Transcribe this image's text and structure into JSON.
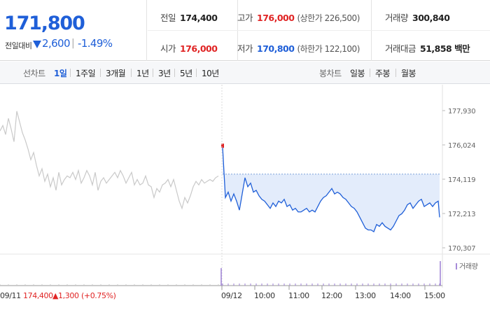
{
  "price": {
    "current": "171,800",
    "change_label": "전일대비",
    "change_amount": "2,600",
    "change_rate": "-1.49%"
  },
  "info": {
    "prev_close": {
      "label": "전일",
      "value": "174,400"
    },
    "high": {
      "label": "고가",
      "value": "176,000",
      "sub": "(상한가 226,500)"
    },
    "volume": {
      "label": "거래량",
      "value": "300,840"
    },
    "open": {
      "label": "시가",
      "value": "176,000"
    },
    "low": {
      "label": "저가",
      "value": "170,800",
      "sub": "(하한가 122,100)"
    },
    "amount": {
      "label": "거래대금",
      "value": "51,858 백만"
    }
  },
  "tabs": {
    "line_chart_label": "선차트",
    "periods": [
      "1일",
      "1주일",
      "3개월",
      "1년",
      "3년",
      "5년",
      "10년"
    ],
    "active_period": "1일",
    "candle_chart_label": "봉차트",
    "candle_periods": [
      "일봉",
      "주봉",
      "월봉"
    ]
  },
  "chart_data": {
    "type": "line",
    "y_ticks": [
      "177,930",
      "176,024",
      "174,119",
      "172,213",
      "170,307"
    ],
    "ylim": [
      170307,
      177930
    ],
    "prev_close_level": 174400,
    "volume_label": "거래량",
    "prev_day_label": "09/11",
    "prev_day_close": "174,400",
    "prev_day_change": "▲1,300",
    "prev_day_rate": "(+0.75%)",
    "x_ticks": [
      "09/12",
      "10:00",
      "11:00",
      "12:00",
      "13:00",
      "14:00",
      "15:00"
    ],
    "series": [
      {
        "day": "09/11",
        "x": [
          0,
          4,
          8,
          12,
          16,
          20,
          24,
          28,
          32,
          36,
          40,
          44,
          48,
          52,
          56,
          60,
          64,
          68,
          72,
          76,
          80,
          84,
          88,
          92,
          96,
          100,
          104,
          108,
          112,
          116,
          120,
          124,
          128,
          132,
          136,
          140,
          144,
          148,
          152,
          156,
          160,
          164,
          168,
          172,
          176,
          180,
          184,
          188,
          192,
          196,
          200,
          204,
          208,
          212,
          216,
          220,
          224,
          228,
          232,
          236,
          240,
          244,
          248,
          252,
          256,
          260,
          264,
          268,
          272,
          276,
          280,
          284,
          288,
          292,
          296,
          300,
          304,
          308,
          312
        ],
        "values": [
          176800,
          177100,
          176600,
          177500,
          176900,
          176200,
          177900,
          177300,
          176700,
          176300,
          175800,
          175200,
          175600,
          174900,
          174300,
          174700,
          174000,
          174400,
          173700,
          174200,
          173500,
          174500,
          173800,
          174100,
          174300,
          174200,
          174500,
          174100,
          174600,
          173900,
          174200,
          174600,
          174300,
          173800,
          174500,
          173500,
          174000,
          174200,
          173900,
          174100,
          174300,
          174500,
          174200,
          174600,
          174300,
          173900,
          174200,
          174500,
          173800,
          174100,
          173800,
          173900,
          174300,
          173800,
          173700,
          173100,
          173600,
          173400,
          173800,
          173900,
          174100,
          173700,
          174100,
          173500,
          172900,
          172500,
          173100,
          172800,
          173200,
          173700,
          174000,
          173800,
          174100,
          173900,
          174000,
          174100,
          174000,
          174200,
          174300
        ]
      },
      {
        "day": "09/12",
        "x": [
          318,
          322,
          326,
          330,
          334,
          338,
          342,
          346,
          350,
          354,
          358,
          362,
          366,
          370,
          374,
          378,
          382,
          386,
          390,
          394,
          398,
          402,
          406,
          410,
          414,
          418,
          422,
          426,
          430,
          434,
          438,
          442,
          446,
          450,
          454,
          458,
          462,
          466,
          470,
          474,
          478,
          482,
          486,
          490,
          494,
          498,
          502,
          506,
          510,
          514,
          518,
          522,
          526,
          530,
          534,
          538,
          542,
          546,
          550,
          554,
          558,
          562,
          566,
          570,
          574,
          578,
          582,
          586,
          590,
          594,
          598,
          602,
          606,
          610,
          614,
          618,
          622,
          626,
          628
        ],
        "values": [
          175900,
          173100,
          173400,
          172900,
          173300,
          172900,
          172400,
          173300,
          174200,
          173700,
          173900,
          173400,
          173500,
          173200,
          173000,
          172900,
          172700,
          172500,
          172800,
          172600,
          172900,
          172800,
          173000,
          172600,
          172700,
          172400,
          172500,
          172300,
          172300,
          172400,
          172500,
          172300,
          172400,
          172300,
          172600,
          172900,
          173100,
          173200,
          173400,
          173600,
          173300,
          173400,
          173300,
          173100,
          173000,
          172800,
          172600,
          172500,
          172300,
          172000,
          171700,
          171400,
          171300,
          171300,
          171200,
          171600,
          171500,
          171700,
          171500,
          171400,
          171300,
          171500,
          171800,
          172100,
          172200,
          172400,
          172700,
          172800,
          172500,
          172700,
          172900,
          173000,
          172600,
          172700,
          172800,
          172600,
          172800,
          172900,
          172000
        ]
      }
    ]
  },
  "colors": {
    "up": "#e02424",
    "down": "#1f5fd8",
    "prev_line": "#c9c9c9",
    "fill": "#e3ecfb"
  }
}
